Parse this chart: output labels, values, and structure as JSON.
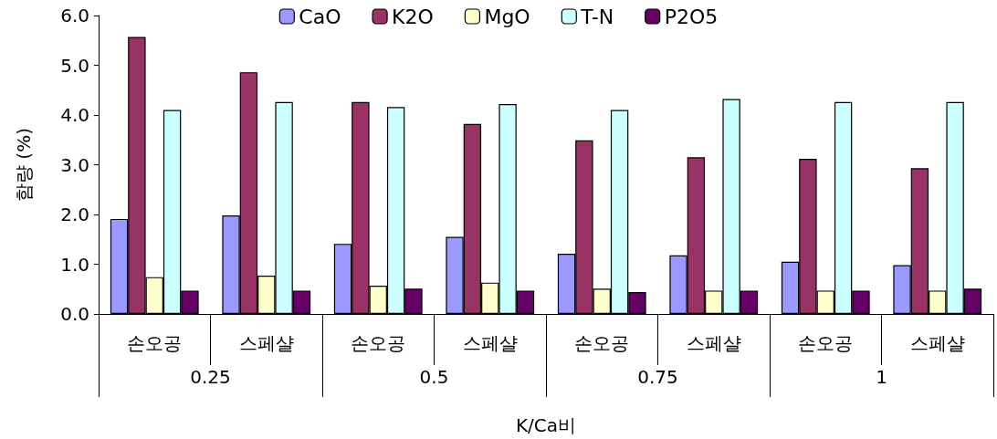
{
  "chart_data": {
    "type": "bar",
    "xlabel": "K/Ca비",
    "ylabel": "함량 (%)",
    "categories": [
      "손오공",
      "스페샬",
      "손오공",
      "스페샬",
      "손오공",
      "스페샬",
      "손오공",
      "스페샬"
    ],
    "annotations": [
      "0.25",
      "0.5",
      "0.75",
      "1"
    ],
    "series": [
      {
        "name": "CaO",
        "color": "#9999ff",
        "values": [
          1.91,
          1.98,
          1.41,
          1.55,
          1.21,
          1.18,
          1.05,
          0.98
        ]
      },
      {
        "name": "K2O",
        "color": "#993366",
        "values": [
          5.57,
          4.86,
          4.26,
          3.82,
          3.49,
          3.15,
          3.12,
          2.93
        ]
      },
      {
        "name": "MgO",
        "color": "#ffffcc",
        "values": [
          0.74,
          0.77,
          0.57,
          0.63,
          0.51,
          0.47,
          0.47,
          0.47
        ]
      },
      {
        "name": "T-N",
        "color": "#ccffff",
        "values": [
          4.1,
          4.26,
          4.16,
          4.22,
          4.1,
          4.32,
          4.26,
          4.26
        ]
      },
      {
        "name": "P2O5",
        "color": "#660066",
        "values": [
          0.47,
          0.47,
          0.51,
          0.47,
          0.44,
          0.47,
          0.47,
          0.51
        ]
      }
    ],
    "ylim": [
      0,
      6
    ],
    "yticks": [
      {
        "value": 0,
        "label": "0.0"
      },
      {
        "value": 1,
        "label": "1.0"
      },
      {
        "value": 2,
        "label": "2.0"
      },
      {
        "value": 3,
        "label": "3.0"
      },
      {
        "value": 4,
        "label": "4.0"
      },
      {
        "value": 5,
        "label": "5.0"
      },
      {
        "value": 6,
        "label": "6.0"
      }
    ],
    "grid": false,
    "legend": "top"
  }
}
